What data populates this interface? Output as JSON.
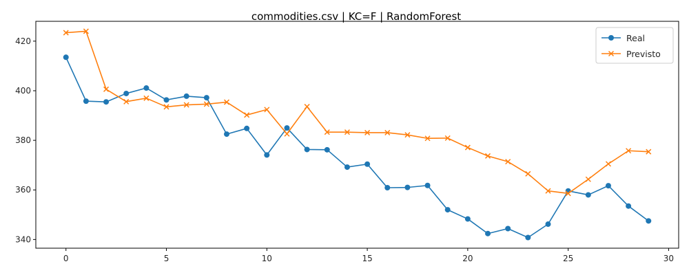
{
  "chart_data": {
    "type": "line",
    "title": "commodities.csv | KC=F | RandomForest",
    "xlabel": "",
    "ylabel": "",
    "xlim": [
      -1.5,
      30.5
    ],
    "ylim": [
      336.5,
      428
    ],
    "xticks": [
      0,
      5,
      10,
      15,
      20,
      25,
      30
    ],
    "yticks": [
      340,
      360,
      380,
      400,
      420
    ],
    "legend_position": "top-right",
    "grid": false,
    "x": [
      0,
      1,
      2,
      3,
      4,
      5,
      6,
      7,
      8,
      9,
      10,
      11,
      12,
      13,
      14,
      15,
      16,
      17,
      18,
      19,
      20,
      21,
      22,
      23,
      24,
      25,
      26,
      27,
      28,
      29
    ],
    "series": [
      {
        "name": "Real",
        "color": "#1f77b4",
        "marker": "circle",
        "values": [
          413.5,
          395.8,
          395.5,
          398.9,
          401.1,
          396.3,
          397.8,
          397.2,
          382.5,
          384.8,
          374.1,
          385.0,
          376.3,
          376.2,
          369.2,
          370.4,
          360.9,
          361.0,
          361.8,
          352.0,
          348.3,
          342.4,
          344.4,
          340.8,
          346.2,
          359.6,
          358.0,
          361.7,
          353.5,
          347.5
        ]
      },
      {
        "name": "Previsto",
        "color": "#ff7f0e",
        "marker": "x",
        "values": [
          423.4,
          424.0,
          400.6,
          395.6,
          397.0,
          393.5,
          394.3,
          394.6,
          395.4,
          390.2,
          392.4,
          382.6,
          393.6,
          383.3,
          383.3,
          383.1,
          383.1,
          382.2,
          380.8,
          380.9,
          377.1,
          373.7,
          371.4,
          366.5,
          359.6,
          358.6,
          364.3,
          370.5,
          375.8,
          375.4
        ]
      }
    ]
  }
}
